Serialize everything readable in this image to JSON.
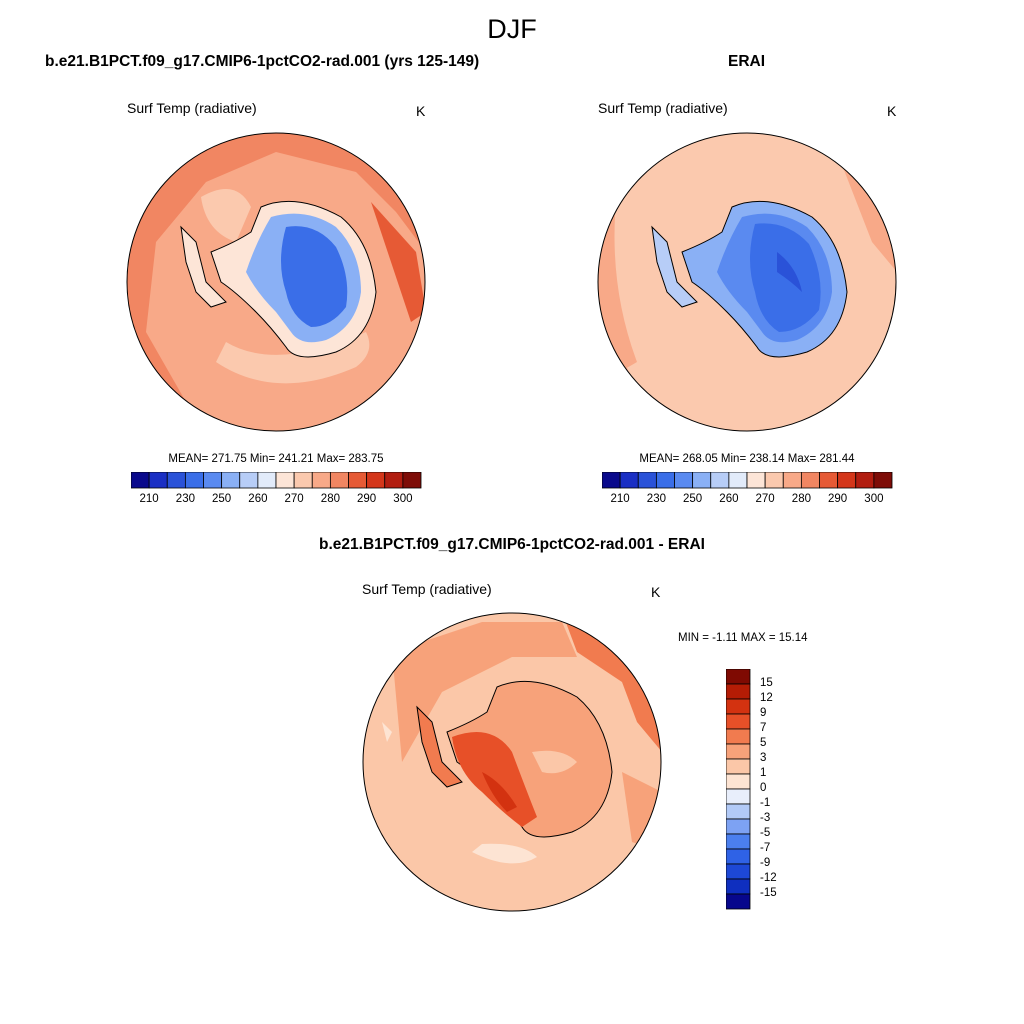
{
  "figure": {
    "season": "DJF"
  },
  "colors": {
    "abs_scale": [
      "#0a0a8c",
      "#1a2fc4",
      "#2a52d8",
      "#3a6ee8",
      "#5a8af0",
      "#8ab0f5",
      "#b7cdf7",
      "#e2ebfa",
      "#fde5d7",
      "#fbc9ae",
      "#f8a988",
      "#f18662",
      "#e65a35",
      "#d4361a",
      "#b21d10",
      "#7e0c07"
    ],
    "diff_scale": [
      "#07078c",
      "#0f2fbf",
      "#1d48d6",
      "#2f62e6",
      "#4b7fee",
      "#7da2f3",
      "#b2caf7",
      "#e8eefb",
      "#fde4d3",
      "#fbc7a8",
      "#f7a27a",
      "#f17b4f",
      "#e75028",
      "#d33210",
      "#b41c05",
      "#7f0a02"
    ]
  },
  "panels": {
    "model": {
      "title": "b.e21.B1PCT.f09_g17.CMIP6-1pctCO2-rad.001 (yrs 125-149)",
      "variable": "Surf Temp (radiative)",
      "unit": "K",
      "stats": "MEAN= 271.75  Min= 241.21  Max= 283.75",
      "mean": 271.75,
      "min": 241.21,
      "max": 283.75
    },
    "obs": {
      "title": "ERAI",
      "variable": "Surf Temp (radiative)",
      "unit": "K",
      "stats": "MEAN= 268.05  Min= 238.14  Max= 281.44",
      "mean": 268.05,
      "min": 238.14,
      "max": 281.44
    },
    "diff": {
      "title": "b.e21.B1PCT.f09_g17.CMIP6-1pctCO2-rad.001 - ERAI",
      "variable": "Surf Temp (radiative)",
      "unit": "K",
      "stats": "MIN =  -1.11 MAX =  15.14",
      "min": -1.11,
      "max": 15.14
    }
  },
  "colorbars": {
    "abs_labels": [
      "210",
      "230",
      "250",
      "260",
      "270",
      "280",
      "290",
      "300"
    ],
    "diff_labels": [
      "15",
      "12",
      "9",
      "7",
      "5",
      "3",
      "1",
      "0",
      "-1",
      "-3",
      "-5",
      "-7",
      "-9",
      "-12",
      "-15"
    ]
  }
}
